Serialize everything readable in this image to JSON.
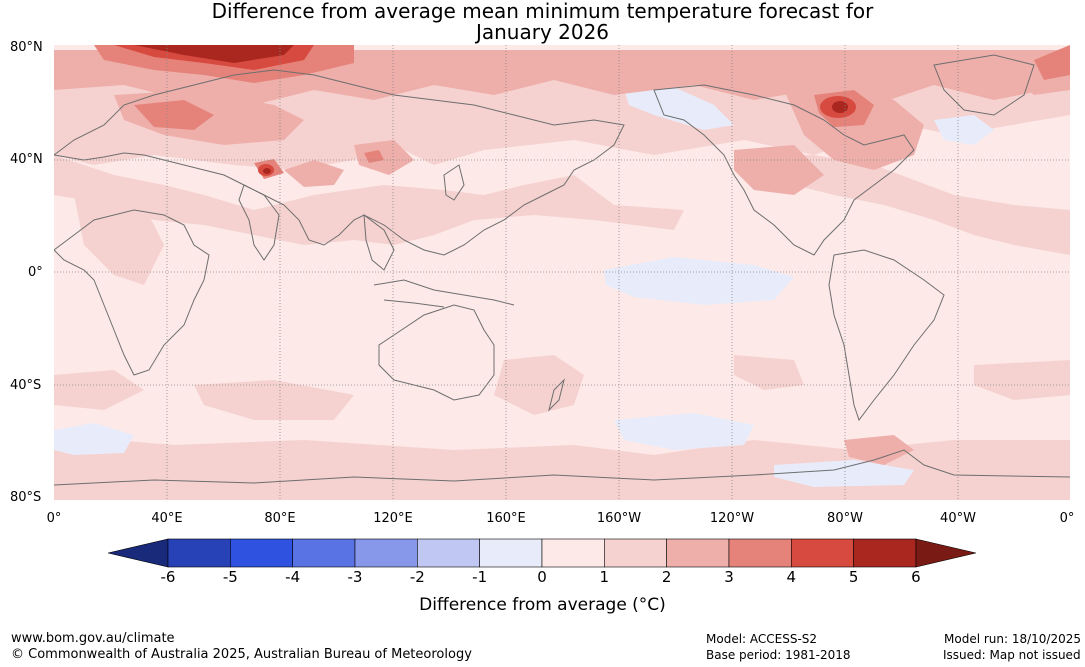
{
  "title": {
    "line1": "Difference from average mean minimum temperature forecast for",
    "line2": "January 2026"
  },
  "lat_labels": [
    "80°N",
    "40°N",
    "0°",
    "40°S",
    "80°S"
  ],
  "lon_labels": [
    "0°",
    "40°E",
    "80°E",
    "120°E",
    "160°E",
    "160°W",
    "120°W",
    "80°W",
    "40°W",
    "0°"
  ],
  "colorbar": {
    "ticks": [
      "-6",
      "-5",
      "-4",
      "-3",
      "-2",
      "-1",
      "0",
      "1",
      "2",
      "3",
      "4",
      "5",
      "6"
    ],
    "colors": [
      "#1a2a7a",
      "#2741b6",
      "#2f52e0",
      "#5a73e4",
      "#8797ea",
      "#bfc7f2",
      "#e8ecfa",
      "#fce9e8",
      "#f5d2d0",
      "#eeaeaa",
      "#e5837b",
      "#d74a3f",
      "#a9271f",
      "#7a1a14"
    ],
    "label": "Difference from average (°C)"
  },
  "footer": {
    "site": "www.bom.gov.au/climate",
    "copyright": "© Commonwealth of Australia 2025, Australian Bureau of Meteorology",
    "model": "Model: ACCESS-S2",
    "base_period": "Base period: 1981-2018",
    "model_run": "Model run: 18/10/2025",
    "issued": "Issued: Map not issued"
  },
  "map_colors": {
    "background": "#fce9e8",
    "warm1": "#f5d2d0",
    "warm2": "#eeaeaa",
    "warm3": "#e5837b",
    "warm4": "#d74a3f",
    "warm5": "#a9271f",
    "warm6": "#7a1a14",
    "cool1": "#e8ecfa",
    "cool2": "#bfc7f2",
    "coast": "#6e6e6e",
    "grid": "#888888"
  }
}
